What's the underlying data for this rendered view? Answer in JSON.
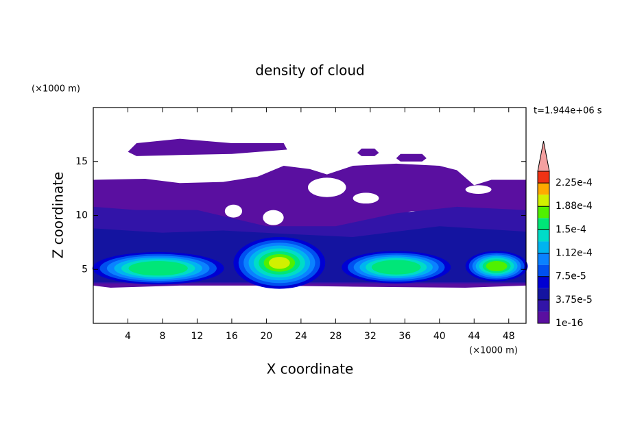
{
  "chart_data": {
    "type": "contour",
    "title": "density of cloud",
    "xlabel": "X coordinate",
    "ylabel": "Z coordinate",
    "x_unit": "(×1000 m)",
    "y_unit": "(×1000 m)",
    "annotation": "t=1.944e+06 s",
    "xlim": [
      0,
      50
    ],
    "ylim": [
      0,
      20
    ],
    "xticks": [
      4,
      8,
      12,
      16,
      20,
      24,
      28,
      32,
      36,
      40,
      44,
      48
    ],
    "yticks": [
      5,
      10,
      15
    ],
    "colorbar": {
      "levels": [
        1e-16,
        1.875e-05,
        3.75e-05,
        5.625e-05,
        7.5e-05,
        9.375e-05,
        0.0001125,
        0.00013125,
        0.00015,
        0.00016875,
        0.0001875,
        0.00020625,
        0.000225,
        0.00024375
      ],
      "colors": [
        "#5a0fa0",
        "#3214a8",
        "#1414a0",
        "#0000d2",
        "#0050f0",
        "#0a82ff",
        "#00b4f0",
        "#00dcc8",
        "#00e678",
        "#50f000",
        "#d2f000",
        "#ffaa00",
        "#f03214"
      ],
      "extend_color": "#f4a0a0",
      "ticks": [
        {
          "value": 1e-16,
          "label": "1e-16"
        },
        {
          "value": 3.75e-05,
          "label": "3.75e-5"
        },
        {
          "value": 7.5e-05,
          "label": "7.5e-5"
        },
        {
          "value": 0.0001125,
          "label": "1.12e-4"
        },
        {
          "value": 0.00015,
          "label": "1.5e-4"
        },
        {
          "value": 0.0001875,
          "label": "1.88e-4"
        },
        {
          "value": 0.000225,
          "label": "2.25e-4"
        }
      ]
    }
  }
}
